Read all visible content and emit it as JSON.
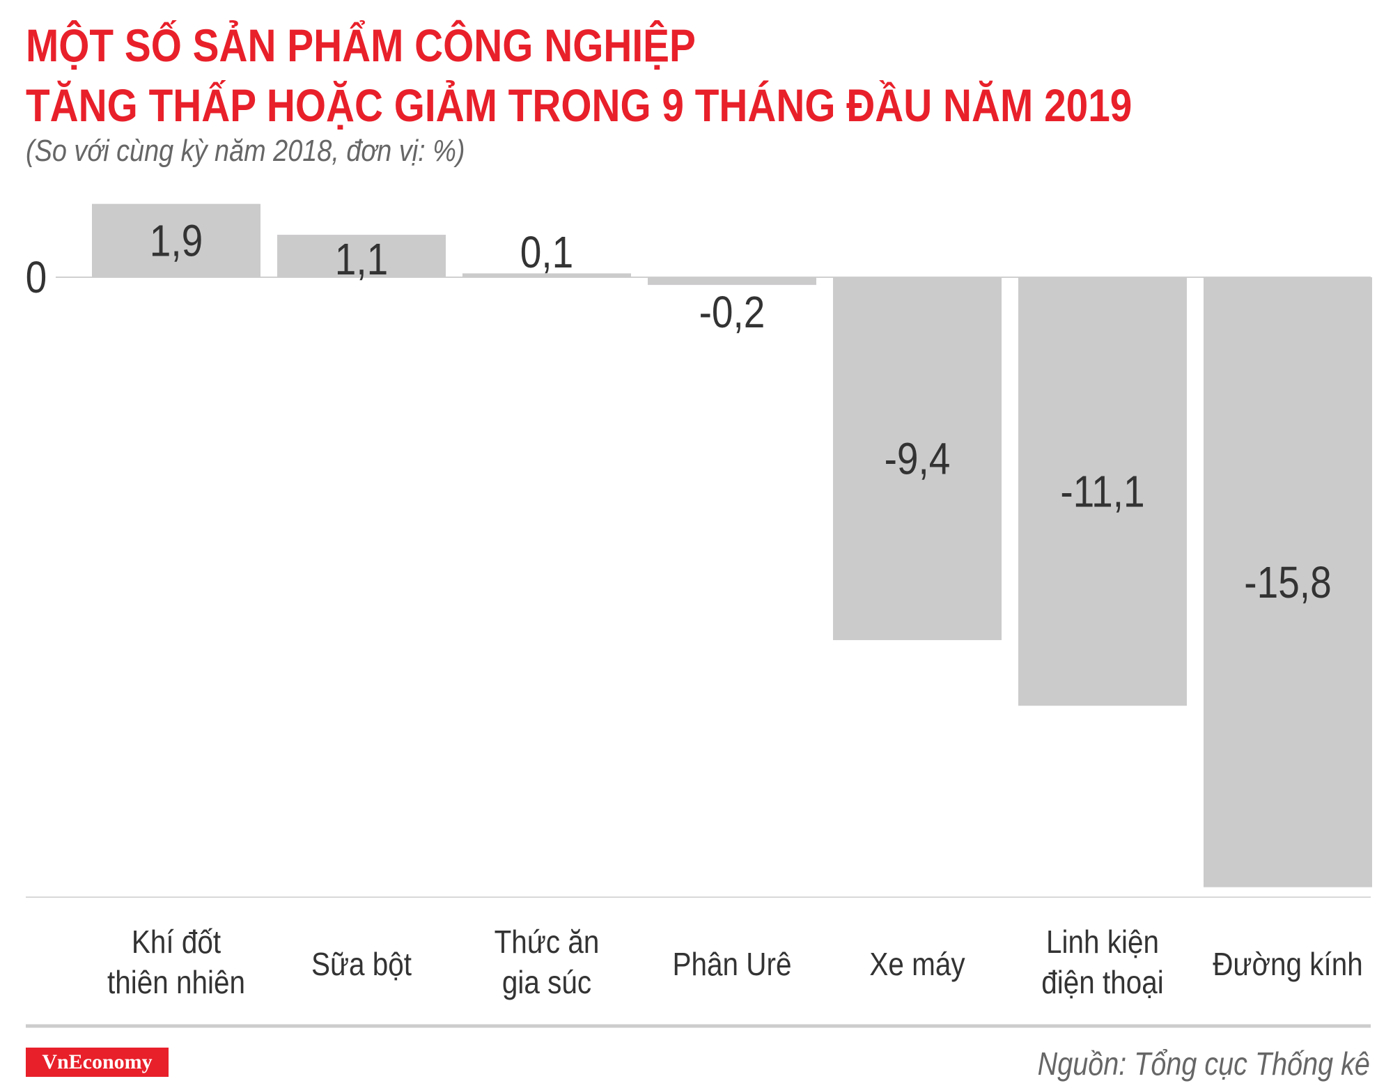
{
  "chart_data": {
    "type": "bar",
    "title": [
      "MỘT SỐ SẢN PHẨM CÔNG NGHIỆP",
      "TĂNG THẤP HOẶC GIẢM TRONG 9 THÁNG ĐẦU NĂM 2019"
    ],
    "subtitle": "(So với cùng kỳ năm 2018, đơn vị: %)",
    "categories": [
      [
        "Khí đốt",
        "thiên nhiên"
      ],
      [
        "Sữa bột"
      ],
      [
        "Thức ăn",
        "gia súc"
      ],
      [
        "Phân Urê"
      ],
      [
        "Xe máy"
      ],
      [
        "Linh kiện",
        "điện thoại"
      ],
      [
        "Đường kính"
      ]
    ],
    "values": [
      1.9,
      1.1,
      0.1,
      -0.2,
      -9.4,
      -11.1,
      -15.8
    ],
    "value_labels": [
      "1,9",
      "1,1",
      "0,1",
      "-0,2",
      "-9,4",
      "-11,1",
      "-15,8"
    ],
    "yticks": [
      "0"
    ],
    "ylim": [
      -16,
      2
    ],
    "grid": false,
    "bar_color": "#cccbcc",
    "title_color": "#e8202a"
  },
  "footer": {
    "logo": "VnEconomy",
    "source": "Nguồn: Tổng cục Thống kê"
  }
}
